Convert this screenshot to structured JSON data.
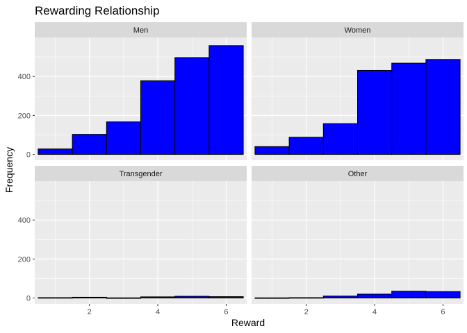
{
  "chart_data": {
    "type": "bar",
    "title": "Rewarding Relationship",
    "xlabel": "Reward",
    "ylabel": "Frequency",
    "categories": [
      1,
      2,
      3,
      4,
      5,
      6
    ],
    "xlim": [
      0.4,
      6.6
    ],
    "ylim": [
      -30,
      600
    ],
    "x_ticks": [
      2,
      4,
      6
    ],
    "y_ticks": [
      0,
      200,
      400
    ],
    "grid": true,
    "facet_layout": "2x2",
    "series": [
      {
        "name": "Men",
        "values": [
          28,
          103,
          167,
          378,
          497,
          558
        ]
      },
      {
        "name": "Women",
        "values": [
          40,
          88,
          158,
          431,
          468,
          487
        ]
      },
      {
        "name": "Transgender",
        "values": [
          2,
          4,
          1,
          6,
          9,
          7
        ]
      },
      {
        "name": "Other",
        "values": [
          1,
          2,
          10,
          20,
          35,
          33
        ]
      }
    ],
    "colors": {
      "bar_fill": "#0000ff",
      "bar_stroke": "#000000",
      "panel_background": "#ebebeb",
      "strip_background": "#d9d9d9",
      "grid": "#ffffff"
    }
  }
}
